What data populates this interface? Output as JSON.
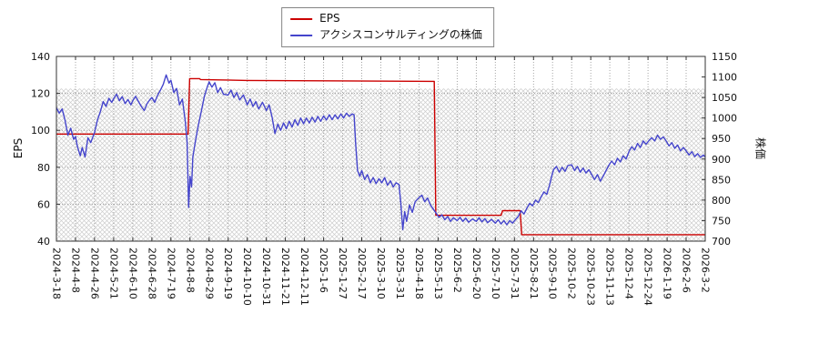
{
  "chart_data": {
    "type": "line",
    "legend": [
      "EPS",
      "アクシスコンサルティングの株価"
    ],
    "left_axis": {
      "label": "EPS",
      "range": [
        40,
        140
      ],
      "ticks": [
        40,
        60,
        80,
        100,
        120,
        140
      ]
    },
    "right_axis": {
      "label": "株価",
      "range": [
        700,
        1150
      ],
      "ticks": [
        700,
        750,
        800,
        850,
        900,
        950,
        1000,
        1050,
        1100,
        1150
      ]
    },
    "x_ticks": [
      "2024-3-18",
      "2024-4-8",
      "2024-4-26",
      "2024-5-21",
      "2024-6-10",
      "2024-6-28",
      "2024-7-19",
      "2024-8-8",
      "2024-8-29",
      "2024-9-19",
      "2024-10-10",
      "2024-10-31",
      "2024-11-21",
      "2024-12-11",
      "2025-1-6",
      "2025-1-27",
      "2025-2-17",
      "2025-3-10",
      "2025-3-31",
      "2025-4-18",
      "2025-5-13",
      "2025-6-2",
      "2025-6-20",
      "2025-7-10",
      "2025-7-31",
      "2025-8-21",
      "2025-9-10",
      "2025-10-2",
      "2025-10-23",
      "2025-11-13",
      "2025-12-4",
      "2025-12-24",
      "2026-1-19",
      "2026-2-6",
      "2026-3-2"
    ],
    "x_unit": "tick_index_0_to_34",
    "grid": true,
    "hatch_band_top_left_value": 122.6,
    "hatch_color": "#cccccc",
    "series": [
      {
        "id": "eps",
        "name": "EPS",
        "axis": "left",
        "color": "#cc0000",
        "points": [
          [
            0,
            98
          ],
          [
            6.9,
            98
          ],
          [
            6.98,
            128
          ],
          [
            7.5,
            128
          ],
          [
            7.55,
            127.5
          ],
          [
            10,
            127
          ],
          [
            19.8,
            126.5
          ],
          [
            19.88,
            54
          ],
          [
            23.3,
            54
          ],
          [
            23.38,
            56.5
          ],
          [
            24.3,
            56.5
          ],
          [
            24.38,
            43.5
          ],
          [
            34,
            43.5
          ]
        ]
      },
      {
        "id": "price",
        "name": "アクシスコンサルティングの株価",
        "axis": "right",
        "color": "#4444cc",
        "points": [
          [
            0,
            1025
          ],
          [
            0.15,
            1012
          ],
          [
            0.3,
            1022
          ],
          [
            0.45,
            995
          ],
          [
            0.6,
            958
          ],
          [
            0.75,
            975
          ],
          [
            0.9,
            948
          ],
          [
            1,
            955
          ],
          [
            1.1,
            930
          ],
          [
            1.25,
            908
          ],
          [
            1.35,
            928
          ],
          [
            1.5,
            905
          ],
          [
            1.65,
            952
          ],
          [
            1.8,
            940
          ],
          [
            2,
            965
          ],
          [
            2.15,
            995
          ],
          [
            2.3,
            1015
          ],
          [
            2.45,
            1040
          ],
          [
            2.6,
            1028
          ],
          [
            2.75,
            1048
          ],
          [
            2.9,
            1038
          ],
          [
            3,
            1047
          ],
          [
            3.15,
            1058
          ],
          [
            3.3,
            1042
          ],
          [
            3.45,
            1052
          ],
          [
            3.6,
            1035
          ],
          [
            3.75,
            1045
          ],
          [
            3.9,
            1032
          ],
          [
            4,
            1042
          ],
          [
            4.15,
            1053
          ],
          [
            4.3,
            1040
          ],
          [
            4.45,
            1028
          ],
          [
            4.6,
            1018
          ],
          [
            4.75,
            1035
          ],
          [
            4.9,
            1045
          ],
          [
            5,
            1050
          ],
          [
            5.15,
            1038
          ],
          [
            5.3,
            1055
          ],
          [
            5.45,
            1068
          ],
          [
            5.6,
            1082
          ],
          [
            5.75,
            1105
          ],
          [
            5.9,
            1085
          ],
          [
            6,
            1092
          ],
          [
            6.15,
            1062
          ],
          [
            6.3,
            1072
          ],
          [
            6.45,
            1032
          ],
          [
            6.6,
            1046
          ],
          [
            6.75,
            992
          ],
          [
            6.85,
            942
          ],
          [
            6.93,
            782
          ],
          [
            7,
            858
          ],
          [
            7.08,
            832
          ],
          [
            7.15,
            905
          ],
          [
            7.3,
            948
          ],
          [
            7.45,
            985
          ],
          [
            7.6,
            1018
          ],
          [
            7.75,
            1052
          ],
          [
            7.9,
            1075
          ],
          [
            8,
            1088
          ],
          [
            8.15,
            1075
          ],
          [
            8.3,
            1086
          ],
          [
            8.45,
            1062
          ],
          [
            8.6,
            1074
          ],
          [
            8.75,
            1058
          ],
          [
            9,
            1056
          ],
          [
            9.15,
            1068
          ],
          [
            9.3,
            1050
          ],
          [
            9.45,
            1062
          ],
          [
            9.6,
            1044
          ],
          [
            9.8,
            1056
          ],
          [
            10,
            1032
          ],
          [
            10.15,
            1046
          ],
          [
            10.3,
            1028
          ],
          [
            10.45,
            1040
          ],
          [
            10.6,
            1022
          ],
          [
            10.8,
            1038
          ],
          [
            11,
            1018
          ],
          [
            11.15,
            1032
          ],
          [
            11.3,
            1002
          ],
          [
            11.45,
            962
          ],
          [
            11.6,
            985
          ],
          [
            11.75,
            970
          ],
          [
            11.9,
            988
          ],
          [
            12.05,
            974
          ],
          [
            12.2,
            992
          ],
          [
            12.35,
            978
          ],
          [
            12.5,
            996
          ],
          [
            12.65,
            982
          ],
          [
            12.8,
            1000
          ],
          [
            12.95,
            986
          ],
          [
            13.1,
            1000
          ],
          [
            13.25,
            988
          ],
          [
            13.4,
            1002
          ],
          [
            13.55,
            990
          ],
          [
            13.7,
            1004
          ],
          [
            13.85,
            992
          ],
          [
            14,
            1005
          ],
          [
            14.15,
            995
          ],
          [
            14.3,
            1008
          ],
          [
            14.45,
            996
          ],
          [
            14.6,
            1008
          ],
          [
            14.75,
            998
          ],
          [
            14.9,
            1010
          ],
          [
            15.05,
            1000
          ],
          [
            15.2,
            1012
          ],
          [
            15.35,
            1004
          ],
          [
            15.5,
            1010
          ],
          [
            15.6,
            1008
          ],
          [
            15.68,
            938
          ],
          [
            15.78,
            872
          ],
          [
            15.9,
            858
          ],
          [
            16,
            872
          ],
          [
            16.15,
            850
          ],
          [
            16.3,
            862
          ],
          [
            16.45,
            842
          ],
          [
            16.6,
            855
          ],
          [
            16.75,
            840
          ],
          [
            16.9,
            852
          ],
          [
            17.05,
            842
          ],
          [
            17.2,
            855
          ],
          [
            17.35,
            836
          ],
          [
            17.5,
            847
          ],
          [
            17.65,
            832
          ],
          [
            17.8,
            842
          ],
          [
            17.95,
            838
          ],
          [
            18.05,
            792
          ],
          [
            18.15,
            728
          ],
          [
            18.25,
            772
          ],
          [
            18.35,
            748
          ],
          [
            18.5,
            788
          ],
          [
            18.65,
            770
          ],
          [
            18.8,
            796
          ],
          [
            19,
            806
          ],
          [
            19.15,
            812
          ],
          [
            19.3,
            796
          ],
          [
            19.45,
            805
          ],
          [
            19.6,
            788
          ],
          [
            19.75,
            778
          ],
          [
            19.9,
            768
          ],
          [
            20.05,
            758
          ],
          [
            20.2,
            764
          ],
          [
            20.35,
            752
          ],
          [
            20.5,
            760
          ],
          [
            20.65,
            748
          ],
          [
            20.8,
            757
          ],
          [
            21,
            750
          ],
          [
            21.15,
            758
          ],
          [
            21.3,
            748
          ],
          [
            21.45,
            756
          ],
          [
            21.6,
            746
          ],
          [
            21.8,
            754
          ],
          [
            22,
            748
          ],
          [
            22.15,
            757
          ],
          [
            22.3,
            747
          ],
          [
            22.45,
            755
          ],
          [
            22.6,
            745
          ],
          [
            22.8,
            753
          ],
          [
            23,
            744
          ],
          [
            23.15,
            752
          ],
          [
            23.3,
            742
          ],
          [
            23.45,
            750
          ],
          [
            23.6,
            740
          ],
          [
            23.75,
            750
          ],
          [
            23.9,
            744
          ],
          [
            24.05,
            752
          ],
          [
            24.2,
            760
          ],
          [
            24.35,
            774
          ],
          [
            24.5,
            766
          ],
          [
            24.65,
            780
          ],
          [
            24.8,
            792
          ],
          [
            24.95,
            786
          ],
          [
            25.1,
            800
          ],
          [
            25.25,
            794
          ],
          [
            25.4,
            808
          ],
          [
            25.55,
            820
          ],
          [
            25.7,
            814
          ],
          [
            25.85,
            838
          ],
          [
            25.95,
            858
          ],
          [
            26.05,
            874
          ],
          [
            26.2,
            882
          ],
          [
            26.35,
            868
          ],
          [
            26.5,
            880
          ],
          [
            26.65,
            870
          ],
          [
            26.8,
            884
          ],
          [
            27,
            886
          ],
          [
            27.15,
            872
          ],
          [
            27.3,
            882
          ],
          [
            27.45,
            868
          ],
          [
            27.6,
            878
          ],
          [
            27.75,
            866
          ],
          [
            27.9,
            874
          ],
          [
            28.05,
            862
          ],
          [
            28.2,
            850
          ],
          [
            28.35,
            862
          ],
          [
            28.5,
            846
          ],
          [
            28.65,
            858
          ],
          [
            28.8,
            872
          ],
          [
            28.95,
            885
          ],
          [
            29.1,
            895
          ],
          [
            29.25,
            886
          ],
          [
            29.4,
            902
          ],
          [
            29.55,
            893
          ],
          [
            29.7,
            908
          ],
          [
            29.85,
            900
          ],
          [
            30,
            918
          ],
          [
            30.15,
            930
          ],
          [
            30.3,
            922
          ],
          [
            30.45,
            938
          ],
          [
            30.6,
            928
          ],
          [
            30.75,
            944
          ],
          [
            30.9,
            936
          ],
          [
            31.05,
            945
          ],
          [
            31.2,
            952
          ],
          [
            31.35,
            944
          ],
          [
            31.5,
            958
          ],
          [
            31.65,
            948
          ],
          [
            31.8,
            954
          ],
          [
            31.95,
            944
          ],
          [
            32.1,
            932
          ],
          [
            32.25,
            940
          ],
          [
            32.4,
            926
          ],
          [
            32.55,
            934
          ],
          [
            32.7,
            920
          ],
          [
            32.85,
            928
          ],
          [
            33,
            920
          ],
          [
            33.15,
            910
          ],
          [
            33.3,
            918
          ],
          [
            33.45,
            906
          ],
          [
            33.6,
            913
          ],
          [
            33.75,
            904
          ],
          [
            33.9,
            910
          ],
          [
            34,
            905
          ]
        ]
      }
    ]
  }
}
